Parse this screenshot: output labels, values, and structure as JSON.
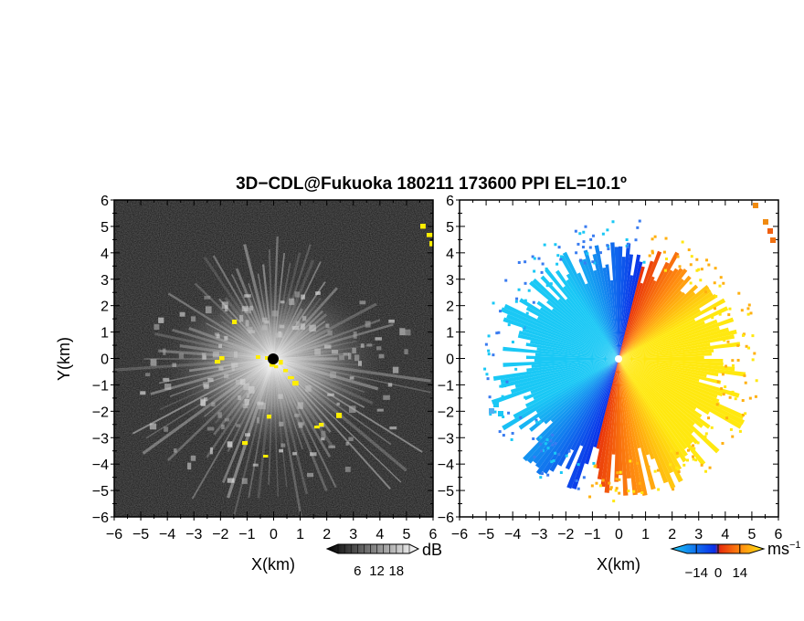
{
  "title": "3D−CDL@Fukuoka 180211 173600 PPI EL=10.1º",
  "colors": {
    "background": "#ffffff",
    "reflectivity_background": "#151515",
    "highlight_yellow": "#ffee00",
    "velocity_negative_dark": "#0a2ee8",
    "velocity_negative_light": "#1ac8f5",
    "velocity_positive_dark": "#e8300a",
    "velocity_positive_light": "#ffe810"
  },
  "chart_data": [
    {
      "type": "heatmap",
      "panel": "left",
      "description": "PPI reflectivity (grayscale, dB)",
      "xlabel": "X(km)",
      "ylabel": "Y(km)",
      "xlim": [
        -6,
        6
      ],
      "ylim": [
        -6,
        6
      ],
      "xticks": [
        "−6",
        "−5",
        "−4",
        "−3",
        "−2",
        "−1",
        "0",
        "1",
        "2",
        "3",
        "4",
        "5",
        "6"
      ],
      "yticks": [
        "6",
        "5",
        "4",
        "3",
        "2",
        "1",
        "0",
        "−1",
        "−2",
        "−3",
        "−4",
        "−5",
        "−6"
      ],
      "radar_center": [
        0,
        0
      ],
      "colorbar": {
        "unit": "dB",
        "ticks": [
          "6",
          "12",
          "18"
        ],
        "tick_values": [
          6,
          12,
          18
        ],
        "range": [
          0,
          22
        ]
      }
    },
    {
      "type": "heatmap",
      "panel": "right",
      "description": "PPI Doppler velocity (blue negative, red/yellow positive)",
      "xlabel": "X(km)",
      "ylabel": "",
      "xlim": [
        -6,
        6
      ],
      "ylim": [
        -6,
        6
      ],
      "xticks": [
        "−6",
        "−5",
        "−4",
        "−3",
        "−2",
        "−1",
        "0",
        "1",
        "2",
        "3",
        "4",
        "5",
        "6"
      ],
      "yticks": [
        "6",
        "5",
        "4",
        "3",
        "2",
        "1",
        "0",
        "−1",
        "−2",
        "−3",
        "−4",
        "−5",
        "−6"
      ],
      "radar_center": [
        0,
        0
      ],
      "colorbar": {
        "unit": "ms",
        "unit_exponent": "−1",
        "ticks": [
          "−14",
          "0",
          "14"
        ],
        "tick_values": [
          -14,
          0,
          14
        ],
        "range": [
          -20,
          20
        ]
      }
    }
  ]
}
